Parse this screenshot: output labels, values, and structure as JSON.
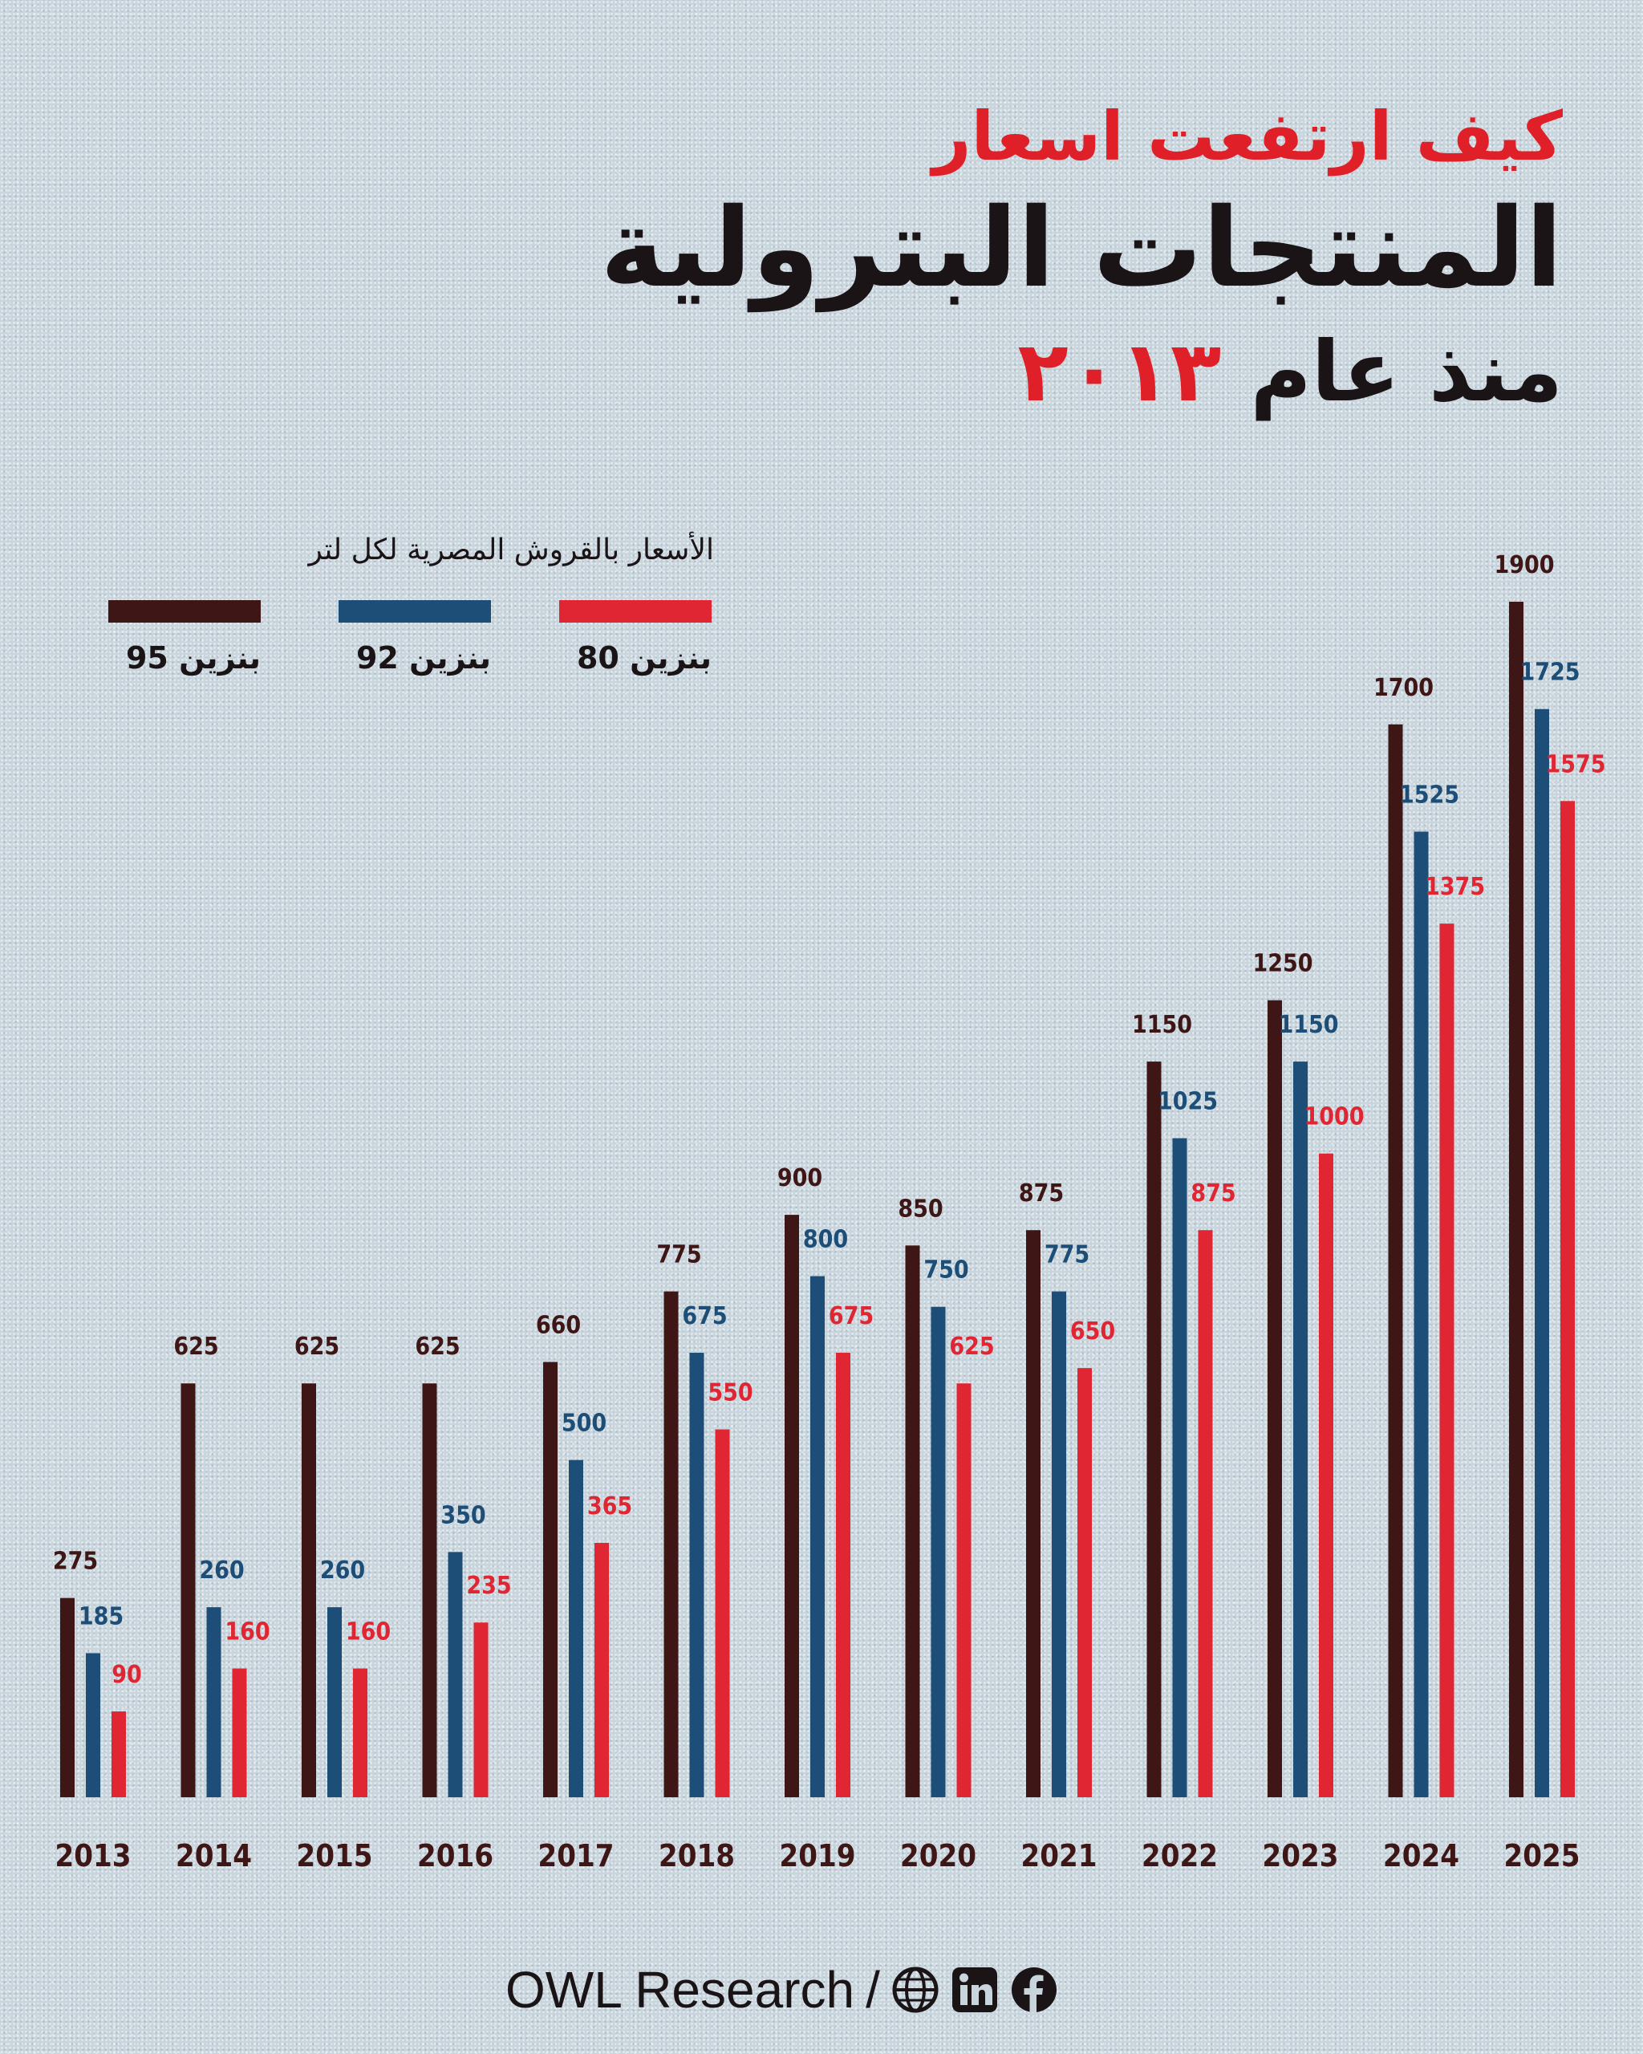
{
  "title": {
    "line1": "كيف ارتفعت اسعار",
    "line2": "المنتجات البترولية",
    "line3_prefix": "منذ عام",
    "line3_year": "٢٠١٣"
  },
  "legend": {
    "unit": "الأسعار بالقروش المصرية لكل لتر",
    "items": [
      {
        "label": "بنزين 95",
        "color": "#3e1616"
      },
      {
        "label": "بنزين 92",
        "color": "#1d4e78"
      },
      {
        "label": "بنزين 80",
        "color": "#df2632"
      }
    ]
  },
  "chart_data": {
    "type": "bar",
    "categories": [
      "2013",
      "2014",
      "2015",
      "2016",
      "2017",
      "2018",
      "2019",
      "2020",
      "2021",
      "2022",
      "2023",
      "2024",
      "2025"
    ],
    "series": [
      {
        "name": "بنزين 95",
        "color": "#3e1616",
        "values": [
          275,
          625,
          625,
          625,
          660,
          775,
          900,
          850,
          875,
          1150,
          1250,
          1700,
          1900
        ]
      },
      {
        "name": "بنزين 92",
        "color": "#1d4e78",
        "values": [
          185,
          260,
          260,
          350,
          500,
          675,
          800,
          750,
          775,
          1025,
          1150,
          1525,
          1725
        ]
      },
      {
        "name": "بنزين 80",
        "color": "#df2632",
        "values": [
          90,
          160,
          160,
          235,
          365,
          550,
          675,
          625,
          650,
          875,
          1000,
          1375,
          1575
        ]
      }
    ],
    "ylim": [
      -50,
      1900
    ]
  },
  "footer": {
    "brand": "OWL Research",
    "separator": "/",
    "icons": [
      "globe-icon",
      "linkedin-icon",
      "facebook-icon"
    ]
  }
}
